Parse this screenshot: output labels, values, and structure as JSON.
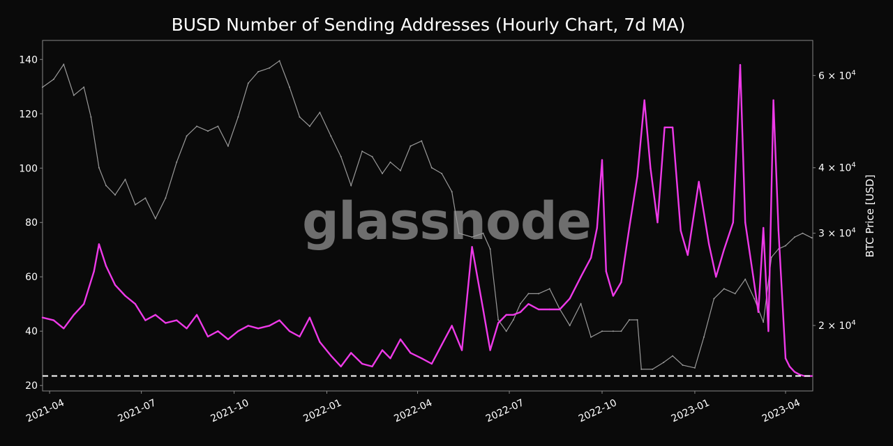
{
  "chart_data": {
    "type": "line",
    "title": "BUSD Number of Sending Addresses (Hourly Chart, 7d MA)",
    "watermark": "glassnode",
    "xlabel": "",
    "ylabel_left": "",
    "ylabel_right": "BTC Price [USD]",
    "x_ticks": [
      "2021-04",
      "2021-07",
      "2021-10",
      "2022-01",
      "2022-04",
      "2022-07",
      "2022-10",
      "2023-01",
      "2023-04"
    ],
    "y_left_ticks": [
      20,
      40,
      60,
      80,
      100,
      120,
      140
    ],
    "y_left_tick_labels": [
      "20",
      "40",
      "60",
      "80",
      "100",
      "120",
      "140"
    ],
    "y_left_lim": [
      18,
      147
    ],
    "y_right_scale": "log",
    "y_right_lim": [
      15000,
      70000
    ],
    "y_right_ticks": [
      20000,
      30000,
      40000,
      60000
    ],
    "y_right_tick_labels": [
      {
        "base": "2 × 10",
        "exp": "4"
      },
      {
        "base": "3 × 10",
        "exp": "4"
      },
      {
        "base": "4 × 10",
        "exp": "4"
      },
      {
        "base": "6 × 10",
        "exp": "4"
      }
    ],
    "grid": false,
    "colors": {
      "background": "#0a0a0a",
      "busd": "#ee3ae8",
      "btc": "#9a9a9a",
      "reference": "#ffffff",
      "frame": "#888888"
    },
    "reference_line": {
      "y": 23.5,
      "style": "dashed",
      "axis": "left"
    },
    "series": [
      {
        "axis": "left",
        "x": [
          "2021-03-25",
          "2021-04-05",
          "2021-04-15",
          "2021-04-25",
          "2021-05-05",
          "2021-05-15",
          "2021-05-20",
          "2021-05-27",
          "2021-06-05",
          "2021-06-15",
          "2021-06-25",
          "2021-07-05",
          "2021-07-15",
          "2021-07-25",
          "2021-08-05",
          "2021-08-15",
          "2021-08-25",
          "2021-09-05",
          "2021-09-15",
          "2021-09-25",
          "2021-10-05",
          "2021-10-15",
          "2021-10-25",
          "2021-11-05",
          "2021-11-15",
          "2021-11-25",
          "2021-12-05",
          "2021-12-15",
          "2021-12-25",
          "2022-01-05",
          "2022-01-15",
          "2022-01-25",
          "2022-02-05",
          "2022-02-15",
          "2022-02-25",
          "2022-03-05",
          "2022-03-15",
          "2022-03-25",
          "2022-04-05",
          "2022-04-15",
          "2022-04-25",
          "2022-05-05",
          "2022-05-15",
          "2022-05-25",
          "2022-06-05",
          "2022-06-12",
          "2022-06-20",
          "2022-06-28",
          "2022-07-05",
          "2022-07-12",
          "2022-07-20",
          "2022-07-30",
          "2022-08-10",
          "2022-08-20",
          "2022-08-30",
          "2022-09-10",
          "2022-09-20",
          "2022-09-26",
          "2022-10-01",
          "2022-10-05",
          "2022-10-12",
          "2022-10-20",
          "2022-10-28",
          "2022-11-05",
          "2022-11-12",
          "2022-11-18",
          "2022-11-25",
          "2022-12-02",
          "2022-12-10",
          "2022-12-18",
          "2022-12-25",
          "2023-01-05",
          "2023-01-15",
          "2023-01-22",
          "2023-01-30",
          "2023-02-08",
          "2023-02-15",
          "2023-02-20",
          "2023-02-28",
          "2023-03-05",
          "2023-03-10",
          "2023-03-15",
          "2023-03-20",
          "2023-03-25",
          "2023-04-01",
          "2023-04-05",
          "2023-04-10",
          "2023-04-15",
          "2023-04-20",
          "2023-04-27"
        ],
        "values": [
          45,
          44,
          41,
          46,
          50,
          62,
          72,
          64,
          57,
          53,
          50,
          44,
          46,
          43,
          44,
          41,
          46,
          38,
          40,
          37,
          40,
          42,
          41,
          42,
          44,
          40,
          38,
          45,
          36,
          31,
          27,
          32,
          28,
          27,
          33,
          30,
          37,
          32,
          30,
          28,
          35,
          42,
          33,
          71,
          48,
          33,
          43,
          46,
          46,
          47,
          50,
          48,
          48,
          48,
          52,
          60,
          67,
          78,
          103,
          62,
          53,
          58,
          78,
          97,
          125,
          100,
          80,
          115,
          115,
          77,
          68,
          95,
          72,
          60,
          70,
          80,
          138,
          80,
          60,
          47,
          78,
          40,
          125,
          77,
          30,
          27,
          25,
          24,
          23.5,
          23.5
        ]
      },
      {
        "axis": "right",
        "x": [
          "2021-03-25",
          "2021-04-05",
          "2021-04-15",
          "2021-04-25",
          "2021-05-05",
          "2021-05-12",
          "2021-05-20",
          "2021-05-27",
          "2021-06-05",
          "2021-06-15",
          "2021-06-25",
          "2021-07-05",
          "2021-07-15",
          "2021-07-25",
          "2021-08-05",
          "2021-08-15",
          "2021-08-25",
          "2021-09-05",
          "2021-09-15",
          "2021-09-25",
          "2021-10-05",
          "2021-10-15",
          "2021-10-25",
          "2021-11-05",
          "2021-11-15",
          "2021-11-25",
          "2021-12-05",
          "2021-12-15",
          "2021-12-25",
          "2022-01-05",
          "2022-01-15",
          "2022-01-25",
          "2022-02-05",
          "2022-02-15",
          "2022-02-25",
          "2022-03-05",
          "2022-03-15",
          "2022-03-25",
          "2022-04-05",
          "2022-04-15",
          "2022-04-25",
          "2022-05-05",
          "2022-05-12",
          "2022-05-25",
          "2022-06-05",
          "2022-06-12",
          "2022-06-20",
          "2022-06-28",
          "2022-07-05",
          "2022-07-12",
          "2022-07-20",
          "2022-07-30",
          "2022-08-10",
          "2022-08-20",
          "2022-08-30",
          "2022-09-10",
          "2022-09-20",
          "2022-10-01",
          "2022-10-12",
          "2022-10-20",
          "2022-10-28",
          "2022-11-05",
          "2022-11-09",
          "2022-11-20",
          "2022-12-01",
          "2022-12-10",
          "2022-12-20",
          "2023-01-01",
          "2023-01-10",
          "2023-01-20",
          "2023-01-30",
          "2023-02-10",
          "2023-02-20",
          "2023-03-01",
          "2023-03-10",
          "2023-03-18",
          "2023-03-25",
          "2023-04-01",
          "2023-04-10",
          "2023-04-18",
          "2023-04-27"
        ],
        "values": [
          57000,
          59000,
          63000,
          55000,
          57000,
          50000,
          40000,
          37000,
          35500,
          38000,
          34000,
          35000,
          32000,
          35000,
          41000,
          46000,
          48000,
          47000,
          48000,
          44000,
          50000,
          58000,
          61000,
          62000,
          64000,
          57000,
          50000,
          48000,
          51000,
          46000,
          42000,
          37000,
          43000,
          42000,
          39000,
          41000,
          39500,
          44000,
          45000,
          40000,
          39000,
          36000,
          30000,
          29500,
          30000,
          28000,
          20500,
          19500,
          20500,
          22000,
          23000,
          23000,
          23500,
          21500,
          20000,
          22000,
          19000,
          19500,
          19500,
          19500,
          20500,
          20500,
          16500,
          16500,
          17000,
          17500,
          16800,
          16600,
          19000,
          22500,
          23500,
          23000,
          24500,
          22500,
          20300,
          27000,
          28000,
          28400,
          29500,
          30000,
          29400
        ]
      }
    ]
  }
}
